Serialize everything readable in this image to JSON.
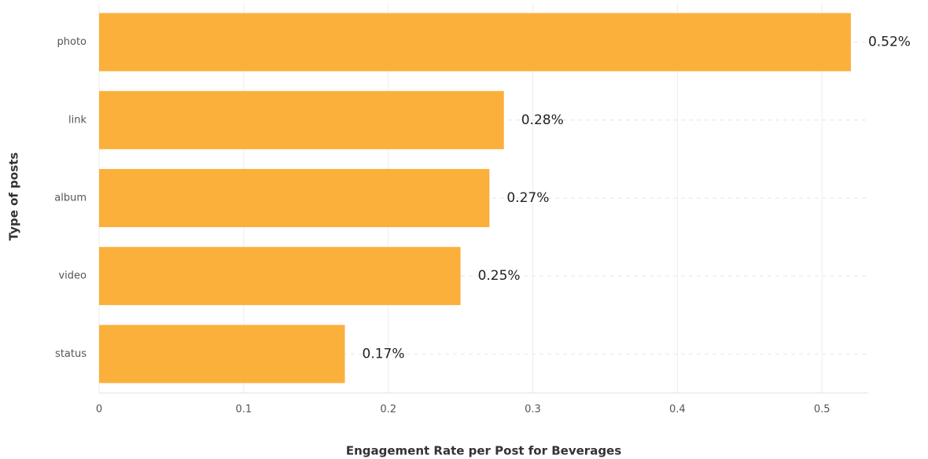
{
  "chart_data": {
    "type": "barh",
    "xlabel": "Engagement Rate per Post for Beverages",
    "ylabel": "Type of posts",
    "categories": [
      "photo",
      "link",
      "album",
      "video",
      "status"
    ],
    "values": [
      0.52,
      0.28,
      0.27,
      0.25,
      0.17
    ],
    "value_labels": [
      "0.52%",
      "0.28%",
      "0.27%",
      "0.25%",
      "0.17%"
    ],
    "color": "#fbb03b",
    "xlim": [
      0,
      0.532
    ],
    "xticks": [
      0,
      0.1,
      0.2,
      0.3,
      0.4,
      0.5
    ],
    "grid": true
  }
}
